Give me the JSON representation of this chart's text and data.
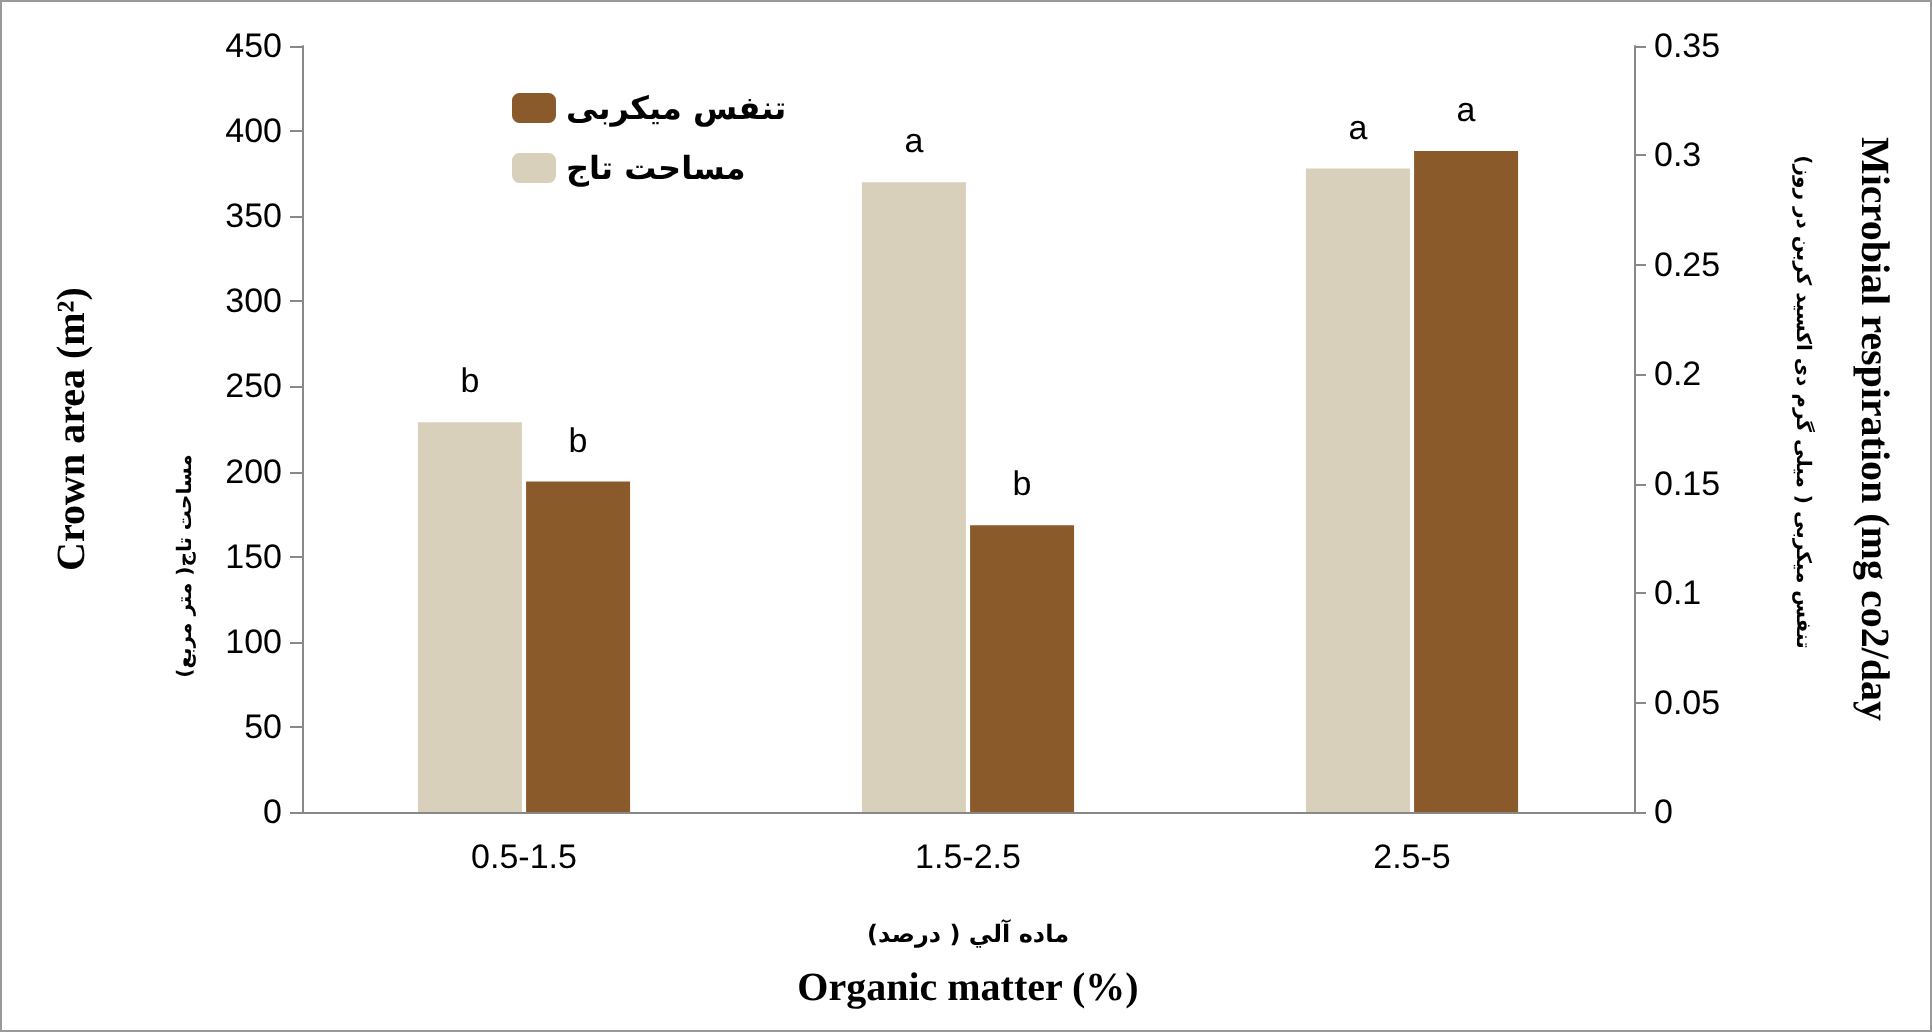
{
  "chart_data": {
    "type": "bar",
    "categories": [
      "0.5-1.5",
      "1.5-2.5",
      "2.5-5"
    ],
    "series": [
      {
        "name": "مساحت تاج",
        "color": "#d8d0bb",
        "values": [
          229,
          370,
          378
        ],
        "value_labels": [
          "b",
          "a",
          "a"
        ]
      },
      {
        "name": "تنفس میکربی",
        "color": "#8b5a2b",
        "values": [
          0.151,
          0.131,
          0.302
        ],
        "value_labels": [
          "b",
          "b",
          "a"
        ],
        "axis": "y2"
      }
    ],
    "ylim": [
      0,
      450
    ],
    "yticks": [
      0,
      50,
      100,
      150,
      200,
      250,
      300,
      350,
      400,
      450
    ],
    "y2lim": [
      0,
      0.35
    ],
    "y2ticks": [
      0,
      0.05,
      0.1,
      0.15,
      0.2,
      0.25,
      0.3,
      0.35
    ],
    "xlabel": "Organic matter (%)",
    "ylabel": "Crown area (m²)",
    "y2label": "Microbial respiration (mg co2/day",
    "annotations": [
      "مساحت تاج( متر مربع)",
      "تنفس میکربی ( میلی گرم دی اکسید کربن در روز)",
      "ماده آلي ( درصد)"
    ],
    "legend": "top left",
    "grid": false
  }
}
